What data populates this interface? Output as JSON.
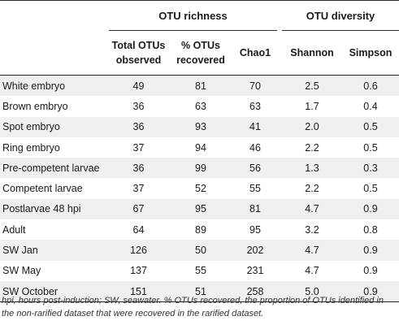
{
  "header": {
    "group_otu_richness": "OTU richness",
    "group_otu_diversity": "OTU diversity",
    "col_total_line1": "Total OTUs",
    "col_total_line2": "observed",
    "col_recovered_line1": "% OTUs",
    "col_recovered_line2": "recovered",
    "col_chao1": "Chao1",
    "col_shannon": "Shannon",
    "col_simpson": "Simpson"
  },
  "rows": [
    {
      "label": "White embryo",
      "total": "49",
      "recovered": "81",
      "chao1": "70",
      "shannon": "2.5",
      "simpson": "0.6"
    },
    {
      "label": "Brown embryo",
      "total": "36",
      "recovered": "63",
      "chao1": "63",
      "shannon": "1.7",
      "simpson": "0.4"
    },
    {
      "label": "Spot embryo",
      "total": "36",
      "recovered": "93",
      "chao1": "41",
      "shannon": "2.0",
      "simpson": "0.5"
    },
    {
      "label": "Ring embryo",
      "total": "37",
      "recovered": "94",
      "chao1": "46",
      "shannon": "2.2",
      "simpson": "0.5"
    },
    {
      "label": "Pre-competent larvae",
      "total": "36",
      "recovered": "99",
      "chao1": "56",
      "shannon": "1.3",
      "simpson": "0.3"
    },
    {
      "label": "Competent larvae",
      "total": "37",
      "recovered": "52",
      "chao1": "55",
      "shannon": "2.2",
      "simpson": "0.5"
    },
    {
      "label": "Postlarvae 48 hpi",
      "total": "67",
      "recovered": "95",
      "chao1": "81",
      "shannon": "4.7",
      "simpson": "0.9"
    },
    {
      "label": "Adult",
      "total": "64",
      "recovered": "89",
      "chao1": "95",
      "shannon": "3.2",
      "simpson": "0.8"
    },
    {
      "label": "SW Jan",
      "total": "126",
      "recovered": "50",
      "chao1": "202",
      "shannon": "4.7",
      "simpson": "0.9"
    },
    {
      "label": "SW May",
      "total": "137",
      "recovered": "55",
      "chao1": "231",
      "shannon": "4.7",
      "simpson": "0.9"
    },
    {
      "label": "SW October",
      "total": "151",
      "recovered": "51",
      "chao1": "258",
      "shannon": "5.0",
      "simpson": "0.9"
    }
  ],
  "footnote": "hpi, hours post-induction; SW, seawater. % OTUs recovered, the proportion of OTUs identified in the non-rarified dataset that were recovered in the rarified dataset."
}
